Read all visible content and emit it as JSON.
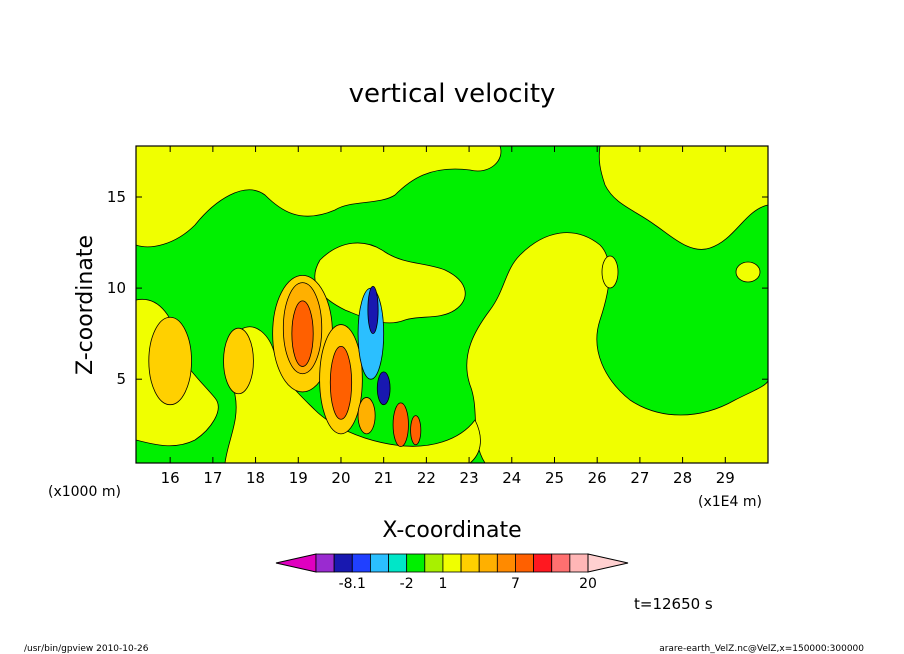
{
  "chart_data": {
    "type": "heatmap",
    "title": "vertical velocity",
    "xlabel": "X-coordinate",
    "ylabel": "Z-coordinate",
    "x_unit_left": "(x1000 m)",
    "x_unit_right": "(x1E4 m)",
    "xlim": [
      15.2,
      30.0
    ],
    "ylim": [
      0.4,
      17.8
    ],
    "x_ticks": [
      16,
      17,
      18,
      19,
      20,
      21,
      22,
      23,
      24,
      25,
      26,
      27,
      28,
      29
    ],
    "y_ticks": [
      5,
      10,
      15
    ],
    "time_label": "t=12650 s",
    "colorbar": {
      "colors": [
        "#e000c0",
        "#9a2bd0",
        "#1818b0",
        "#2040ff",
        "#2bbfff",
        "#00e6c8",
        "#00f000",
        "#a8f000",
        "#f0ff00",
        "#ffd000",
        "#ffb000",
        "#ff8a00",
        "#ff6000",
        "#ff1820",
        "#ff7070",
        "#ffb6b6",
        "#ffd0d0"
      ],
      "tick_labels": [
        {
          "label": "-8.1",
          "bin": 2
        },
        {
          "label": "-2",
          "bin": 5
        },
        {
          "label": "1",
          "bin": 7
        },
        {
          "label": "7",
          "bin": 11
        },
        {
          "label": "20",
          "bin": 15
        }
      ]
    },
    "regions": [
      {
        "level": "yellow",
        "x": 16.0,
        "y": 6.0,
        "rx": 0.5,
        "ry": 2.4
      },
      {
        "level": "yellow",
        "x": 17.6,
        "y": 6.0,
        "rx": 0.35,
        "ry": 1.8
      },
      {
        "level": "yellow",
        "x": 19.1,
        "y": 7.5,
        "rx": 0.7,
        "ry": 3.2
      },
      {
        "level": "orange",
        "x": 19.1,
        "y": 7.8,
        "rx": 0.45,
        "ry": 2.5
      },
      {
        "level": "dark-orange",
        "x": 19.1,
        "y": 7.5,
        "rx": 0.25,
        "ry": 1.8
      },
      {
        "level": "yellow",
        "x": 20.0,
        "y": 5.0,
        "rx": 0.5,
        "ry": 3.0
      },
      {
        "level": "dark-orange",
        "x": 20.0,
        "y": 4.8,
        "rx": 0.25,
        "ry": 2.0
      },
      {
        "level": "cyan",
        "x": 20.7,
        "y": 7.5,
        "rx": 0.3,
        "ry": 2.5
      },
      {
        "level": "blue",
        "x": 20.75,
        "y": 8.8,
        "rx": 0.12,
        "ry": 1.3
      },
      {
        "level": "orange",
        "x": 20.6,
        "y": 3.0,
        "rx": 0.2,
        "ry": 1.0
      },
      {
        "level": "blue",
        "x": 21.0,
        "y": 4.5,
        "rx": 0.15,
        "ry": 0.9
      },
      {
        "level": "dark-orange",
        "x": 21.4,
        "y": 2.5,
        "rx": 0.18,
        "ry": 1.2
      },
      {
        "level": "dark-orange",
        "x": 21.75,
        "y": 2.2,
        "rx": 0.12,
        "ry": 0.8
      }
    ]
  },
  "footer": {
    "left": "/usr/bin/gpview   2010-10-26",
    "right": "arare-earth_VelZ.nc@VelZ,x=150000:300000"
  }
}
